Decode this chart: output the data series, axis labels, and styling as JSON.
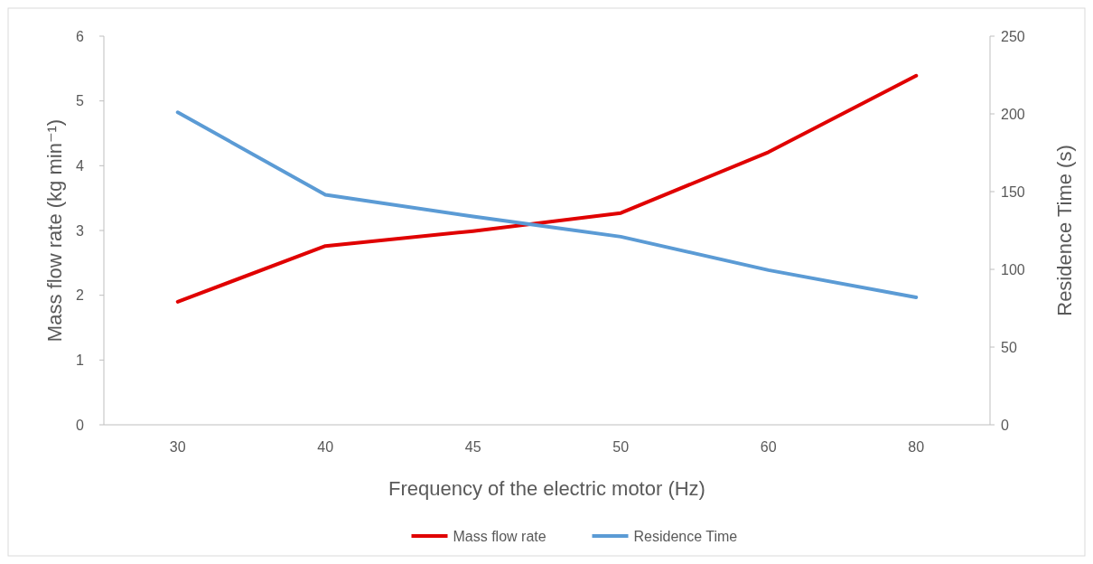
{
  "chart_data": {
    "type": "line",
    "xlabel": "Frequency of the electric motor (Hz)",
    "ylabel": "Mass flow rate (kg min⁻¹)",
    "y2label": "Residence Time (s)",
    "categories": [
      "30",
      "40",
      "45",
      "50",
      "60",
      "80"
    ],
    "series": [
      {
        "name": "Mass flow rate",
        "color": "#e00000",
        "values": [
          1.9,
          2.76,
          2.99,
          3.27,
          4.21,
          5.39
        ]
      },
      {
        "name": "Residence Time",
        "color": "#5b9bd5",
        "axis": "y2",
        "values": [
          201,
          148,
          134,
          121,
          99.5,
          82
        ]
      }
    ],
    "ylim": [
      0,
      6
    ],
    "yticks": [
      0,
      1,
      2,
      3,
      4,
      5,
      6
    ],
    "y2lim": [
      0,
      250
    ],
    "y2ticks": [
      0,
      50,
      100,
      150,
      200,
      250
    ],
    "legend": "bottom",
    "grid": false,
    "marker": "none",
    "line_style": "solid"
  }
}
